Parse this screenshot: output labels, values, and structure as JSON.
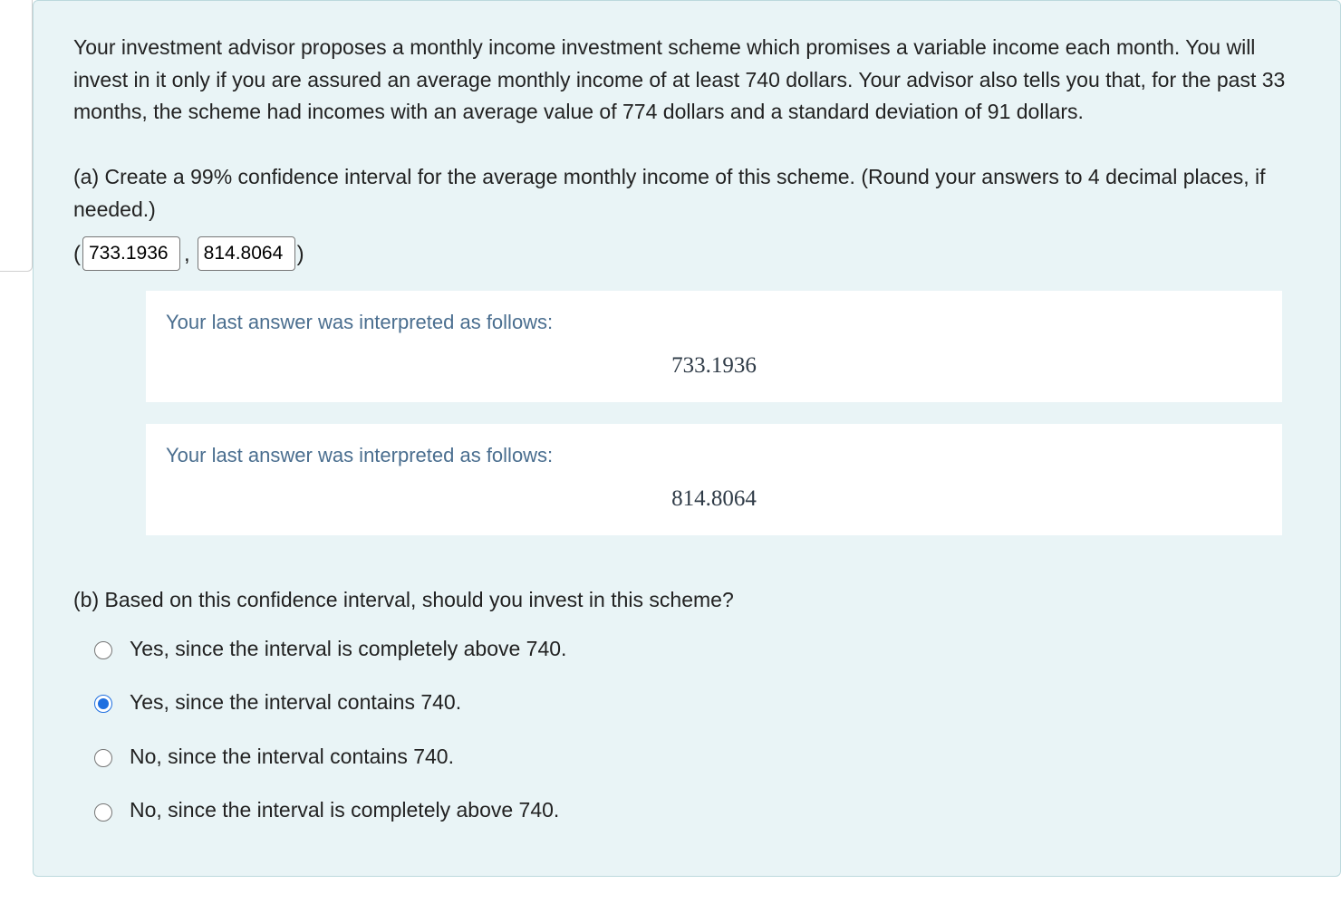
{
  "problem": {
    "intro": "Your investment advisor proposes a monthly income investment scheme which promises a variable income each month. You will invest in it only if you are assured an average monthly income of at least 740 dollars. Your advisor also tells you that, for the past 33 months, the scheme had incomes with an average value of 774 dollars and a standard deviation of 91 dollars.",
    "partA": {
      "prompt": "(a) Create a 99% confidence interval for the average monthly income of this scheme. (Round your answers to 4 decimal places, if needed.)",
      "open": "(",
      "comma": ",",
      "close": ")",
      "lower_input": "733.1936",
      "upper_input": "814.8064",
      "feedback_label": "Your last answer was interpreted as follows:",
      "feedback1_value": "733.1936",
      "feedback2_value": "814.8064"
    },
    "partB": {
      "prompt": "(b) Based on this confidence interval, should you invest in this scheme?",
      "options": [
        "Yes, since the interval is completely above 740.",
        "Yes, since the interval contains 740.",
        "No, since the interval contains 740.",
        "No, since the interval is completely above 740."
      ],
      "selected_index": 1
    }
  },
  "colors": {
    "panel_bg": "#e9f4f6",
    "panel_border": "#bcd9dd",
    "feedback_text": "#4a6e8f",
    "radio_accent": "#1f6fe0"
  }
}
